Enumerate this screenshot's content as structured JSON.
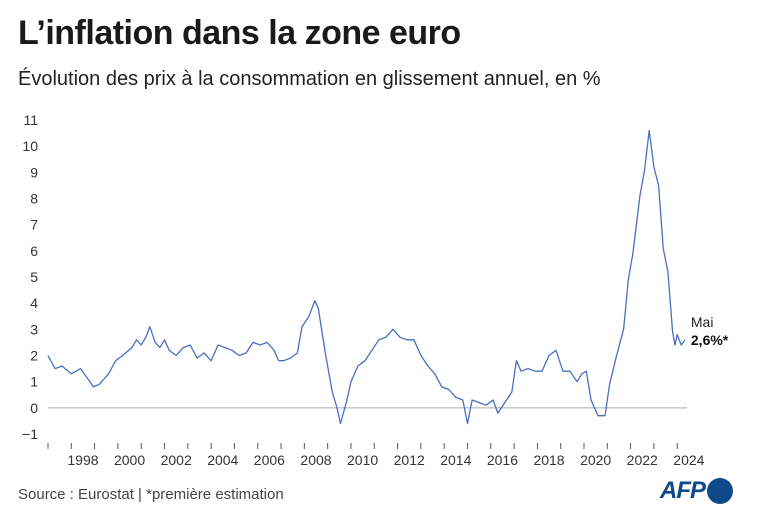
{
  "title": "L’inflation dans la zone euro",
  "subtitle": "Évolution des prix à la consommation en glissement annuel, en %",
  "source": "Source : Eurostat | *première estimation",
  "logo_text": "AFP",
  "colors": {
    "line": "#4a6fc1",
    "zero": "#aaaaaa",
    "logo": "#0e4a8b"
  },
  "chart_data": {
    "type": "line",
    "title": "L’inflation dans la zone euro",
    "subtitle": "Évolution des prix à la consommation en glissement annuel, en %",
    "xlabel": "",
    "ylabel": "",
    "xlim": [
      1997.0,
      2024.42
    ],
    "ylim": [
      -1,
      11
    ],
    "grid": false,
    "yticks": [
      "−1",
      "0",
      "1",
      "2",
      "3",
      "4",
      "5",
      "6",
      "7",
      "8",
      "9",
      "10",
      "11"
    ],
    "xticks": [
      "1998",
      "2000",
      "2002",
      "2004",
      "2006",
      "2008",
      "2010",
      "2012",
      "2014",
      "2016",
      "2018",
      "2020",
      "2022",
      "2024"
    ],
    "series": [
      {
        "x": [
          1997.0,
          1997.3,
          1997.6,
          1998.0,
          1998.4,
          1998.8,
          1998.95,
          1999.2,
          1999.6,
          1999.9,
          2000.2,
          2000.6,
          2000.8,
          2001.0,
          2001.2,
          2001.37,
          2001.6,
          2001.8,
          2002.0,
          2002.2,
          2002.5,
          2002.8,
          2003.1,
          2003.4,
          2003.7,
          2004.0,
          2004.3,
          2004.6,
          2004.9,
          2005.2,
          2005.5,
          2005.8,
          2006.1,
          2006.4,
          2006.7,
          2006.9,
          2007.1,
          2007.4,
          2007.7,
          2007.9,
          2008.2,
          2008.45,
          2008.6,
          2008.9,
          2009.2,
          2009.4,
          2009.55,
          2009.8,
          2010.0,
          2010.3,
          2010.6,
          2010.9,
          2011.2,
          2011.5,
          2011.8,
          2012.1,
          2012.4,
          2012.7,
          2013.0,
          2013.3,
          2013.6,
          2013.9,
          2014.2,
          2014.5,
          2014.8,
          2015.0,
          2015.2,
          2015.5,
          2015.8,
          2016.1,
          2016.3,
          2016.6,
          2016.9,
          2017.1,
          2017.3,
          2017.6,
          2017.9,
          2018.2,
          2018.5,
          2018.8,
          2019.1,
          2019.4,
          2019.7,
          2019.9,
          2020.1,
          2020.3,
          2020.6,
          2020.9,
          2021.1,
          2021.4,
          2021.7,
          2021.9,
          2022.1,
          2022.4,
          2022.6,
          2022.8,
          2023.0,
          2023.2,
          2023.4,
          2023.6,
          2023.8,
          2023.9,
          2024.0,
          2024.17,
          2024.33
        ],
        "values": [
          2.0,
          1.5,
          1.6,
          1.3,
          1.5,
          1.0,
          0.8,
          0.9,
          1.3,
          1.8,
          2.0,
          2.3,
          2.6,
          2.4,
          2.7,
          3.1,
          2.5,
          2.3,
          2.6,
          2.2,
          2.0,
          2.3,
          2.4,
          1.9,
          2.1,
          1.8,
          2.4,
          2.3,
          2.2,
          2.0,
          2.1,
          2.5,
          2.4,
          2.5,
          2.2,
          1.8,
          1.8,
          1.9,
          2.1,
          3.1,
          3.5,
          4.1,
          3.8,
          2.1,
          0.6,
          0.0,
          -0.6,
          0.2,
          1.0,
          1.6,
          1.8,
          2.2,
          2.6,
          2.7,
          3.0,
          2.7,
          2.6,
          2.6,
          2.0,
          1.6,
          1.3,
          0.8,
          0.7,
          0.4,
          0.3,
          -0.6,
          0.3,
          0.2,
          0.1,
          0.3,
          -0.2,
          0.2,
          0.6,
          1.8,
          1.4,
          1.5,
          1.4,
          1.4,
          2.0,
          2.2,
          1.4,
          1.4,
          1.0,
          1.3,
          1.4,
          0.3,
          -0.3,
          -0.3,
          0.9,
          2.0,
          3.0,
          4.9,
          5.9,
          8.1,
          9.1,
          10.6,
          9.2,
          8.5,
          6.1,
          5.2,
          2.9,
          2.4,
          2.8,
          2.4,
          2.6
        ]
      }
    ],
    "annotation": {
      "label": "Mai",
      "value": "2,6%*"
    }
  }
}
